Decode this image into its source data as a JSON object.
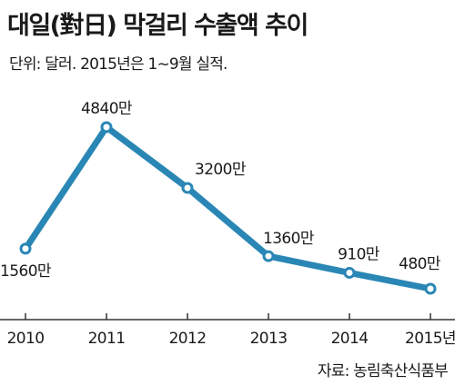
{
  "title": "대일(對日) 막걸리 수출액 추이",
  "subtitle": "단위: 달러. 2015년은  1~9월 실적.",
  "source": "자료: 농림축산식품부",
  "colors": {
    "line": "#2a87b5",
    "marker_fill": "#ffffff",
    "axis": "#333333",
    "text": "#1a1a1a"
  },
  "chart_data": {
    "type": "line",
    "title": "대일(對日) 막걸리 수출액 추이",
    "subtitle": "단위: 달러. 2015년은  1~9월 실적.",
    "xlabel": "",
    "ylabel": "",
    "categories": [
      "2010",
      "2011",
      "2012",
      "2013",
      "2014",
      "2015년"
    ],
    "series": [
      {
        "values": [
          15600000,
          48400000,
          32000000,
          13600000,
          9100000,
          4800000
        ],
        "labels": [
          "1560만",
          "4840만",
          "3200만",
          "1360만",
          "910만",
          "480만"
        ]
      }
    ],
    "grid": false,
    "legend": "none"
  }
}
